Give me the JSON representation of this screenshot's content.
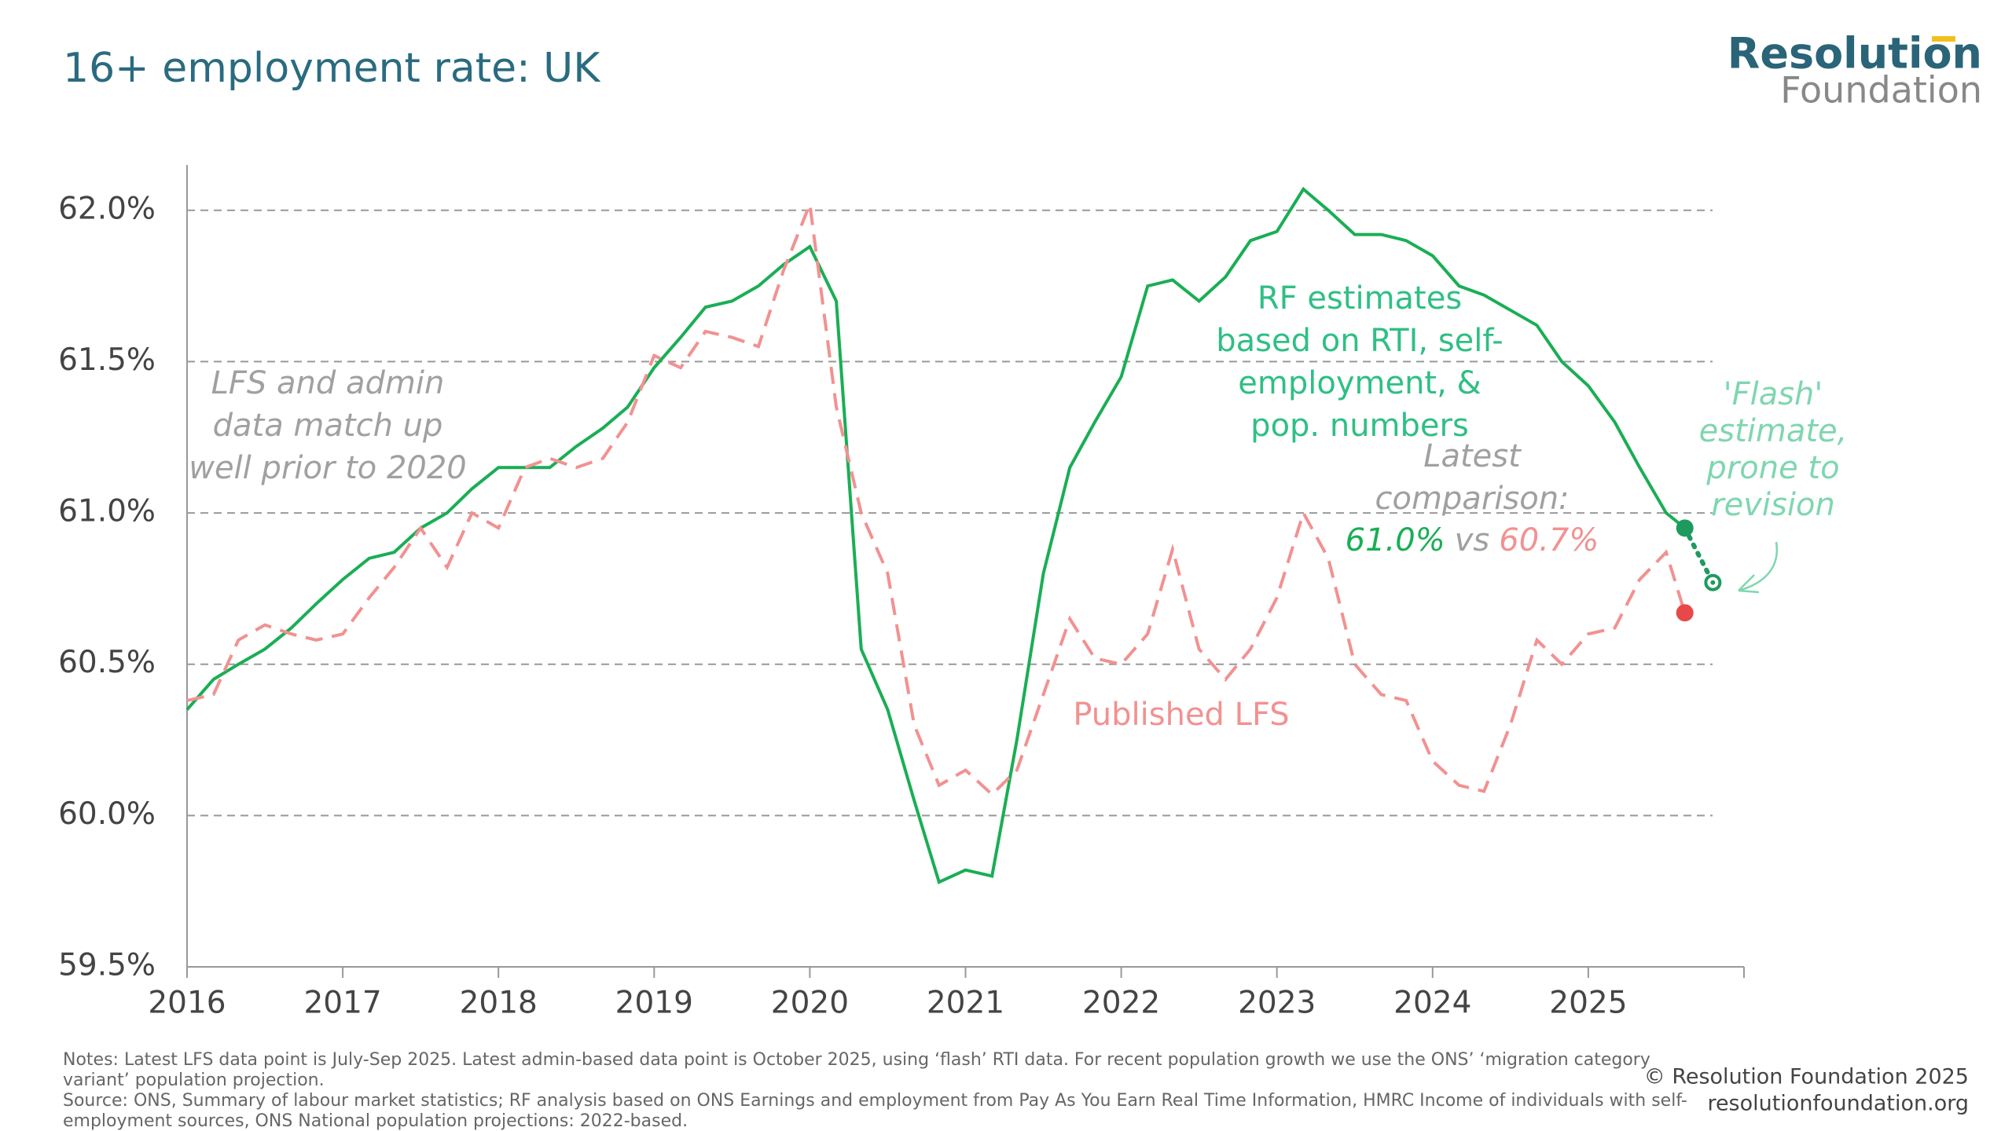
{
  "chart_data": {
    "type": "line",
    "title": "16+ employment rate: UK",
    "logo": [
      "Resolution",
      "Foundation"
    ],
    "x": [
      2016.0,
      2016.17,
      2016.33,
      2016.5,
      2016.67,
      2016.83,
      2017.0,
      2017.17,
      2017.33,
      2017.5,
      2017.67,
      2017.83,
      2018.0,
      2018.17,
      2018.33,
      2018.5,
      2018.67,
      2018.83,
      2019.0,
      2019.17,
      2019.33,
      2019.5,
      2019.67,
      2019.83,
      2020.0,
      2020.17,
      2020.33,
      2020.5,
      2020.67,
      2020.83,
      2021.0,
      2021.17,
      2021.33,
      2021.5,
      2021.67,
      2021.83,
      2022.0,
      2022.17,
      2022.33,
      2022.5,
      2022.67,
      2022.83,
      2023.0,
      2023.17,
      2023.33,
      2023.5,
      2023.67,
      2023.83,
      2024.0,
      2024.17,
      2024.33,
      2024.5,
      2024.67,
      2024.83,
      2025.0,
      2025.17,
      2025.33,
      2025.5,
      2025.62
    ],
    "series": [
      {
        "color": "#1aae55",
        "dash": false,
        "values": [
          60.35,
          60.45,
          60.5,
          60.55,
          60.62,
          60.7,
          60.78,
          60.85,
          60.87,
          60.95,
          61.0,
          61.08,
          61.15,
          61.15,
          61.15,
          61.22,
          61.28,
          61.35,
          61.48,
          61.58,
          61.68,
          61.7,
          61.75,
          61.82,
          61.88,
          61.7,
          60.55,
          60.35,
          60.05,
          59.78,
          59.82,
          59.8,
          60.25,
          60.8,
          61.15,
          61.3,
          61.45,
          61.75,
          61.77,
          61.7,
          61.78,
          61.9,
          61.93,
          62.07,
          62.0,
          61.92,
          61.92,
          61.9,
          61.85,
          61.75,
          61.72,
          61.67,
          61.62,
          61.5,
          61.42,
          61.3,
          61.15,
          61.0,
          60.95
        ]
      },
      {
        "color": "#f29191",
        "dash": true,
        "values": [
          60.38,
          60.4,
          60.58,
          60.63,
          60.6,
          60.58,
          60.6,
          60.72,
          60.82,
          60.95,
          60.82,
          61.0,
          60.95,
          61.15,
          61.18,
          61.15,
          61.18,
          61.3,
          61.52,
          61.48,
          61.6,
          61.58,
          61.55,
          61.8,
          62.02,
          61.35,
          61.0,
          60.8,
          60.3,
          60.1,
          60.15,
          60.07,
          60.15,
          60.4,
          60.65,
          60.52,
          60.5,
          60.6,
          60.88,
          60.55,
          60.45,
          60.55,
          60.72,
          61.0,
          60.85,
          60.5,
          60.4,
          60.38,
          60.18,
          60.1,
          60.08,
          60.3,
          60.58,
          60.5,
          60.6,
          60.62,
          60.78,
          60.87,
          60.67
        ]
      }
    ],
    "points": [
      {
        "x": 2025.62,
        "y": 60.95,
        "color": "#1f9a5f"
      },
      {
        "x": 2025.62,
        "y": 60.67,
        "color": "#e84848"
      },
      {
        "x": 2025.8,
        "y": 60.77,
        "color": "#1f9a5f"
      }
    ],
    "xlim": [
      2016,
      2026
    ],
    "xticks": [
      2016,
      2017,
      2018,
      2019,
      2020,
      2021,
      2022,
      2023,
      2024,
      2025
    ],
    "ylim": [
      59.5,
      62.15
    ],
    "yticks": [
      {
        "value": 59.5,
        "label": "59.5%"
      },
      {
        "value": 60,
        "label": "60.0%"
      },
      {
        "value": 60.5,
        "label": "60.5%"
      },
      {
        "value": 61,
        "label": "61.0%"
      },
      {
        "value": 61.5,
        "label": "61.5%"
      },
      {
        "value": 62,
        "label": "62.0%"
      }
    ],
    "grid": true,
    "annotations": {
      "lfs_admin": [
        "LFS and admin",
        "data match up",
        "well prior to 2020"
      ],
      "rf": [
        "RF estimates",
        "based on RTI, self-",
        "employment, &",
        "pop. numbers"
      ],
      "published": "Published LFS",
      "comparison": [
        "Latest",
        "comparison:"
      ],
      "comparison_rf": "61.0%",
      "comparison_vs": "vs",
      "comparison_lfs": "60.7%",
      "flash": [
        "'Flash'",
        "estimate,",
        "prone to",
        "revision"
      ]
    },
    "notes": [
      "Notes: Latest LFS data point is July-Sep 2025. Latest admin-based data point is October 2025, using ‘flash’ RTI data. For recent population growth we use the ONS’ ‘migration category",
      "variant’ population projection.",
      "Source: ONS, Summary of labour market statistics; RF analysis based on ONS Earnings and employment from Pay As You Earn Real Time Information, HMRC Income of individuals with self-",
      "employment sources, ONS National population projections: 2022-based."
    ],
    "copyright": [
      "© Resolution Foundation 2025",
      "resolutionfoundation.org"
    ]
  }
}
